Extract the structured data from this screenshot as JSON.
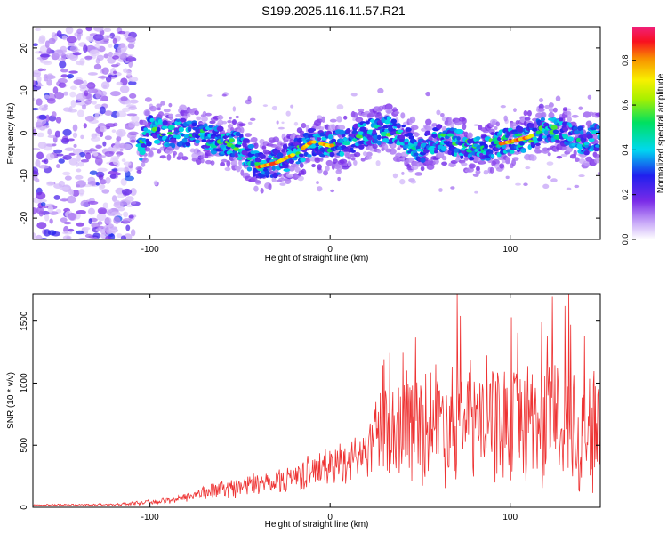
{
  "title": "S199.2025.116.11.57.R21",
  "chart_data": [
    {
      "type": "heatmap",
      "xlabel": "Height of straight line (km)",
      "ylabel": "Frequency (Hz)",
      "xlim": [
        -165,
        150
      ],
      "ylim": [
        -25,
        25
      ],
      "x_ticks": [
        -100,
        0,
        100
      ],
      "y_ticks": [
        -20,
        -10,
        0,
        10,
        20
      ],
      "colorbar": {
        "label": "Normalized spectral amplitude",
        "range": [
          0,
          0.95
        ],
        "ticks": [
          0.0,
          0.2,
          0.4,
          0.6,
          0.8
        ]
      },
      "ridge": {
        "x": [
          -106,
          -100,
          -90,
          -80,
          -70,
          -60,
          -50,
          -40,
          -30,
          -20,
          -10,
          0,
          10,
          20,
          30,
          40,
          50,
          60,
          70,
          80,
          90,
          100,
          110,
          120,
          130,
          140,
          148
        ],
        "y": [
          -4,
          1,
          0,
          0,
          -1,
          -2,
          -3,
          -8,
          -7,
          -5,
          -2,
          -3,
          -2,
          0,
          1,
          -1,
          -4,
          -1,
          -2,
          -4,
          -3,
          -2,
          -1,
          1,
          0,
          -2,
          -1
        ]
      }
    },
    {
      "type": "line",
      "xlabel": "Height of straight line (km)",
      "ylabel": "SNR (10 * v/v)",
      "xlim": [
        -165,
        150
      ],
      "ylim": [
        0,
        1720
      ],
      "x_ticks": [
        -100,
        0,
        100
      ],
      "y_ticks": [
        0,
        500,
        1000,
        1500
      ],
      "color": "#ee3333",
      "envelope": {
        "x": [
          -165,
          -120,
          -100,
          -90,
          -80,
          -70,
          -60,
          -50,
          -40,
          -30,
          -20,
          -10,
          0,
          10,
          20,
          30,
          40,
          50,
          60,
          70,
          80,
          90,
          100,
          110,
          120,
          130,
          140,
          150
        ],
        "mean": [
          18,
          22,
          40,
          55,
          85,
          120,
          150,
          165,
          190,
          215,
          250,
          290,
          330,
          390,
          450,
          600,
          650,
          680,
          700,
          720,
          700,
          680,
          700,
          720,
          700,
          680,
          650,
          600
        ],
        "spread": [
          6,
          8,
          18,
          28,
          40,
          55,
          70,
          80,
          90,
          100,
          115,
          130,
          150,
          170,
          190,
          380,
          420,
          450,
          480,
          500,
          470,
          460,
          480,
          500,
          520,
          560,
          520,
          500
        ]
      }
    }
  ]
}
